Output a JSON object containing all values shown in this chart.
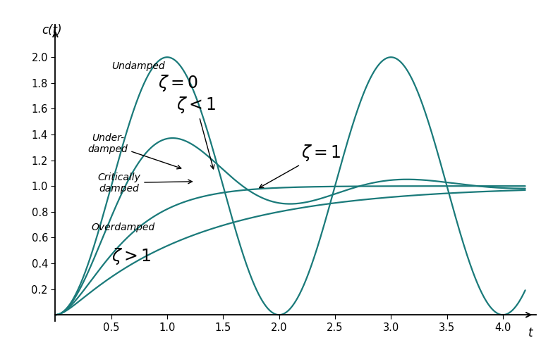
{
  "title": "",
  "xlabel": "t",
  "ylabel": "c(t)",
  "xlim": [
    0,
    4.3
  ],
  "ylim": [
    -0.05,
    2.25
  ],
  "xticks": [
    0.5,
    1.0,
    1.5,
    2.0,
    2.5,
    3.0,
    3.5,
    4.0
  ],
  "yticks": [
    0.2,
    0.4,
    0.6,
    0.8,
    1.0,
    1.2,
    1.4,
    1.6,
    1.8,
    2.0
  ],
  "line_color": "#1a7a7a",
  "background_color": "#ffffff",
  "wn": 3.14159265,
  "zetas": [
    0,
    0.3,
    1.0,
    2.0
  ],
  "figsize": [
    7.84,
    5.07
  ],
  "dpi": 100
}
